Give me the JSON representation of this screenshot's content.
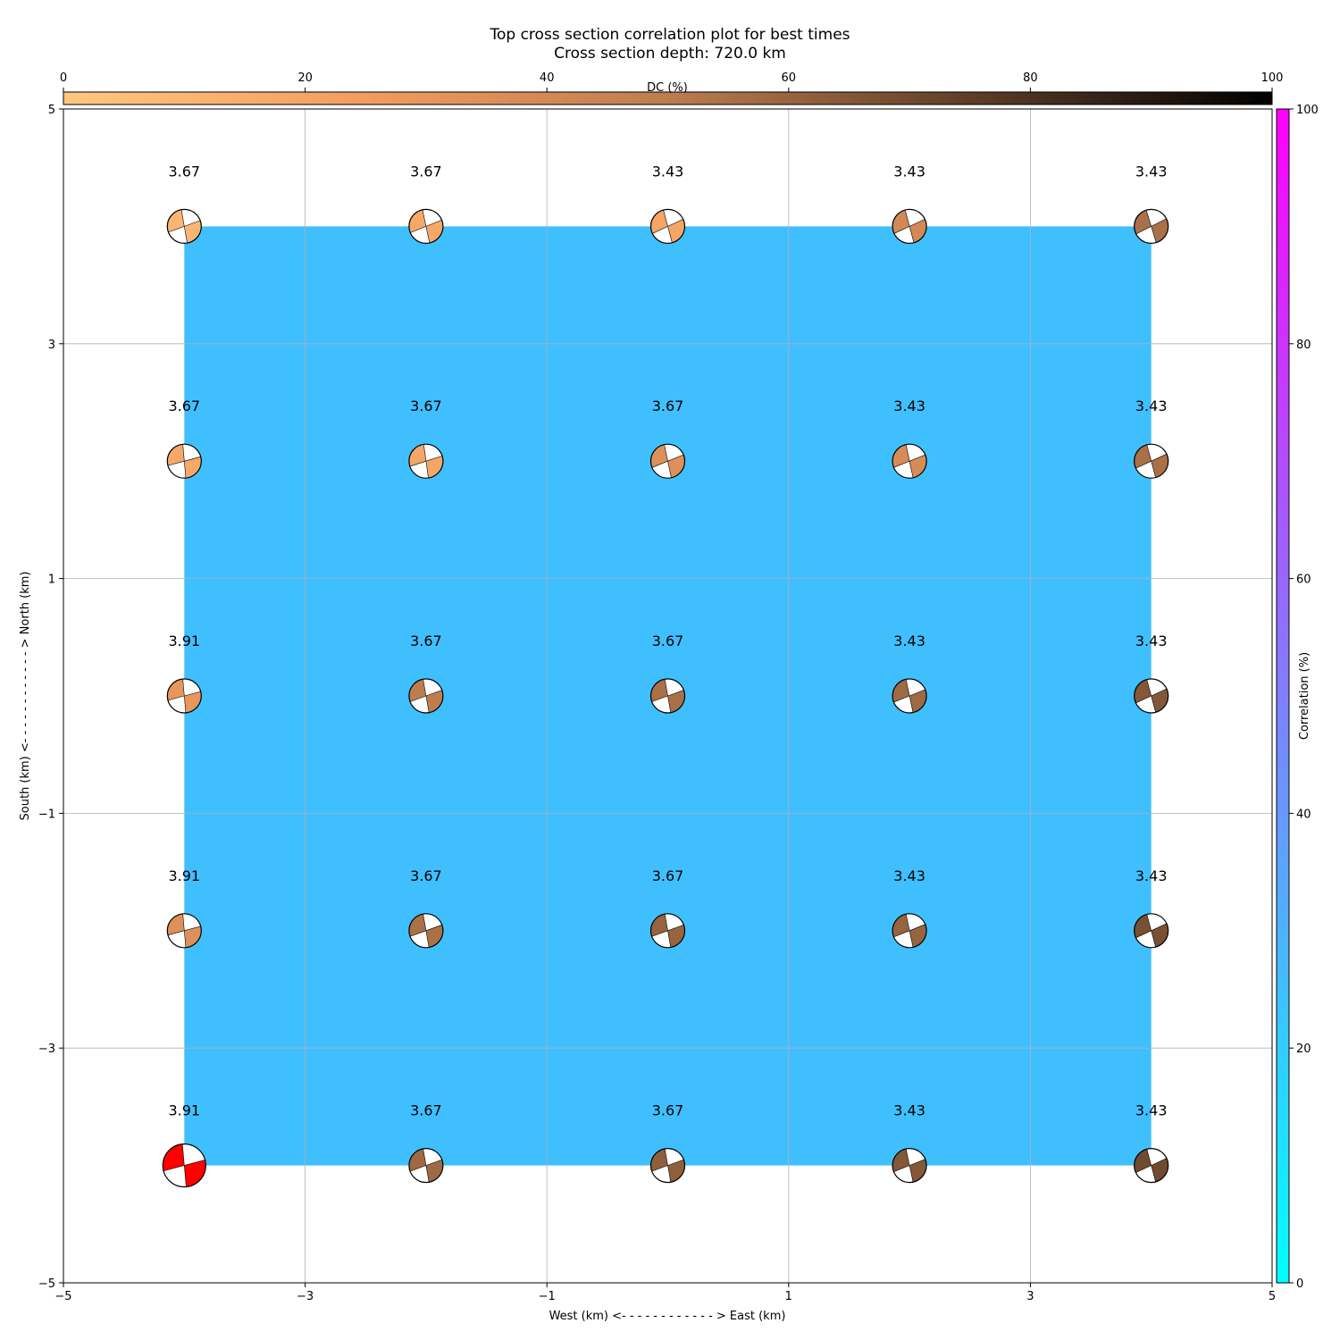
{
  "chart_data": {
    "type": "scatter",
    "title": "Top cross section correlation plot for best times",
    "subtitle": "Cross section depth: 720.0 km",
    "xlabel": "West (km) <- - - - - - - - - - - - > East (km)",
    "ylabel": "South (km) <- - - - - - - - - - - - > North (km)",
    "xlim": [
      -5,
      5
    ],
    "ylim": [
      -5,
      5
    ],
    "xticks": [
      "−5",
      "−3",
      "−1",
      "1",
      "3",
      "5"
    ],
    "yticks": [
      "−5",
      "−3",
      "−1",
      "1",
      "3",
      "5"
    ],
    "grid": true,
    "background_correlation_percent": 25,
    "background_color": "#40bfff",
    "best_solution_color": "#ff0000",
    "colorbars": [
      {
        "label": "DC (%)",
        "placement": "top",
        "range": [
          0,
          100
        ],
        "ticks": [
          "0",
          "20",
          "40",
          "60",
          "80",
          "100"
        ],
        "colormap": "copper_r"
      },
      {
        "label": "Correlation (%)",
        "placement": "right",
        "range": [
          0,
          100
        ],
        "ticks": [
          "0",
          "20",
          "40",
          "60",
          "80",
          "100"
        ],
        "colormap": "cool"
      }
    ],
    "points": [
      {
        "x": -4,
        "y": 4,
        "label": "3.67",
        "dc": 10,
        "rot": -20
      },
      {
        "x": -2,
        "y": 4,
        "label": "3.67",
        "dc": 18,
        "rot": -22
      },
      {
        "x": 0,
        "y": 4,
        "label": "3.43",
        "dc": 20,
        "rot": -25
      },
      {
        "x": 2,
        "y": 4,
        "label": "3.43",
        "dc": 40,
        "rot": -25
      },
      {
        "x": 4,
        "y": 4,
        "label": "3.43",
        "dc": 55,
        "rot": -27
      },
      {
        "x": -4,
        "y": 2,
        "label": "3.67",
        "dc": 18,
        "rot": -15
      },
      {
        "x": -2,
        "y": 2,
        "label": "3.67",
        "dc": 20,
        "rot": -18
      },
      {
        "x": 0,
        "y": 2,
        "label": "3.67",
        "dc": 35,
        "rot": -22
      },
      {
        "x": 2,
        "y": 2,
        "label": "3.43",
        "dc": 38,
        "rot": -22
      },
      {
        "x": 4,
        "y": 2,
        "label": "3.43",
        "dc": 55,
        "rot": -25
      },
      {
        "x": -4,
        "y": 0,
        "label": "3.91",
        "dc": 30,
        "rot": -15
      },
      {
        "x": -2,
        "y": 0,
        "label": "3.67",
        "dc": 50,
        "rot": -20
      },
      {
        "x": 0,
        "y": 0,
        "label": "3.67",
        "dc": 55,
        "rot": -20
      },
      {
        "x": 2,
        "y": 0,
        "label": "3.43",
        "dc": 58,
        "rot": -22
      },
      {
        "x": 4,
        "y": 0,
        "label": "3.43",
        "dc": 65,
        "rot": -25
      },
      {
        "x": -4,
        "y": -2,
        "label": "3.91",
        "dc": 35,
        "rot": -15
      },
      {
        "x": -2,
        "y": -2,
        "label": "3.67",
        "dc": 55,
        "rot": -20
      },
      {
        "x": 0,
        "y": -2,
        "label": "3.67",
        "dc": 60,
        "rot": -20
      },
      {
        "x": 2,
        "y": -2,
        "label": "3.43",
        "dc": 60,
        "rot": -22
      },
      {
        "x": 4,
        "y": -2,
        "label": "3.43",
        "dc": 68,
        "rot": -25
      },
      {
        "x": -4,
        "y": -4,
        "label": "3.91",
        "dc": 0,
        "rot": -15,
        "best": true
      },
      {
        "x": -2,
        "y": -4,
        "label": "3.67",
        "dc": 58,
        "rot": -20
      },
      {
        "x": 0,
        "y": -4,
        "label": "3.67",
        "dc": 62,
        "rot": -20
      },
      {
        "x": 2,
        "y": -4,
        "label": "3.43",
        "dc": 65,
        "rot": -22
      },
      {
        "x": 4,
        "y": -4,
        "label": "3.43",
        "dc": 70,
        "rot": -25
      }
    ]
  }
}
